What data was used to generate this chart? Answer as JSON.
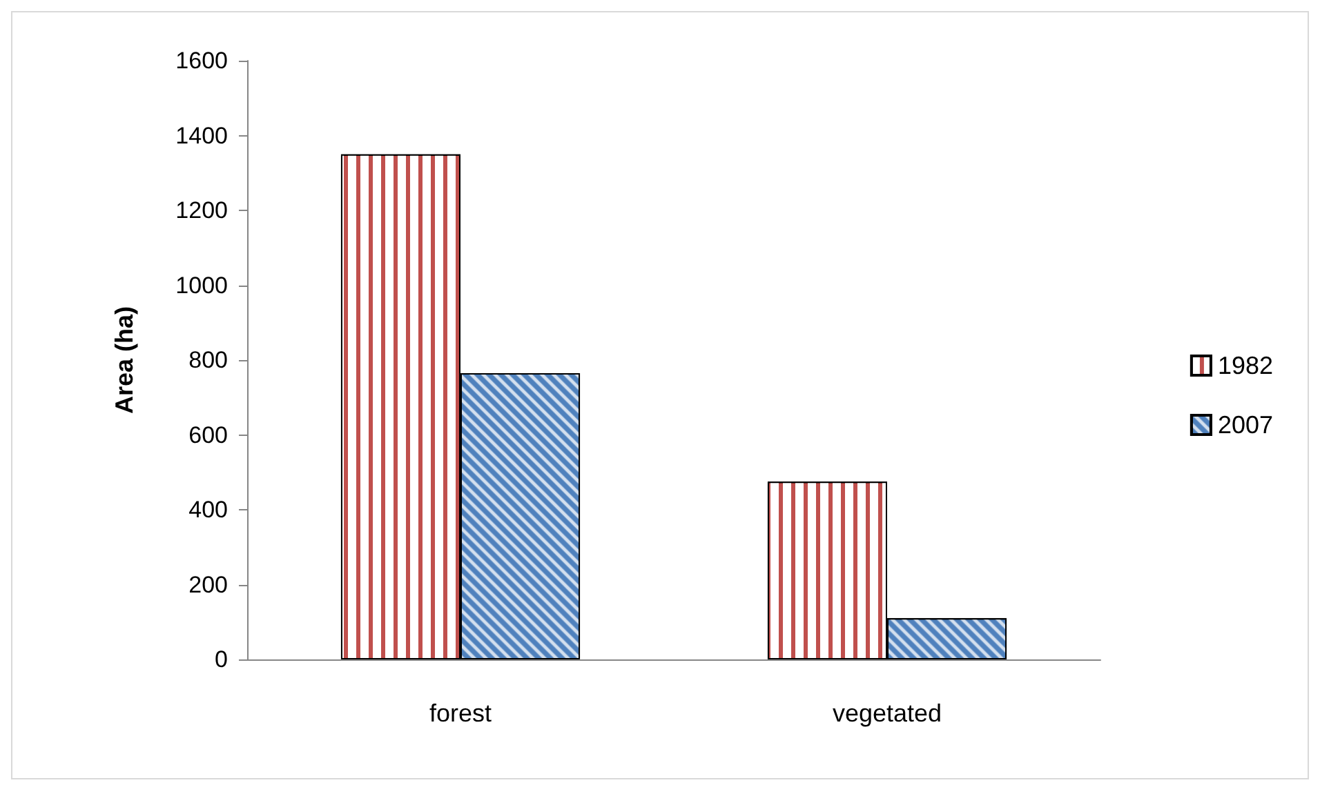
{
  "chart_data": {
    "type": "bar",
    "ylabel": "Area (ha)",
    "categories": [
      "forest",
      "vegetated"
    ],
    "series": [
      {
        "name": "1982",
        "color": "#c0504d",
        "values": [
          1350,
          475
        ]
      },
      {
        "name": "2007",
        "color": "#4f81bd",
        "values": [
          765,
          110
        ]
      }
    ],
    "ylim": [
      0,
      1600
    ],
    "yticks": [
      0,
      200,
      400,
      600,
      800,
      1000,
      1200,
      1400,
      1600
    ],
    "grid": false,
    "legend": "right"
  }
}
